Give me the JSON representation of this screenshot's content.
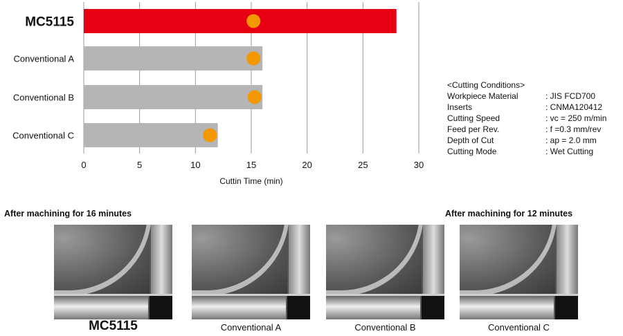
{
  "chart_data": {
    "type": "bar",
    "orientation": "horizontal",
    "categories": [
      "MC5115",
      "Conventional A",
      "Conventional B",
      "Conventional C"
    ],
    "values": [
      28,
      16,
      16,
      12
    ],
    "markers": [
      15.2,
      15.2,
      15.3,
      11.3
    ],
    "xlabel": "Cuttin Time (min)",
    "xlim": [
      0,
      30
    ],
    "xticks": [
      0,
      5,
      10,
      15,
      20,
      25,
      30
    ],
    "grid": true,
    "colors": {
      "highlight": "#e60012",
      "bar": "#b4b5b4",
      "marker": "#f39800",
      "grid": "#999999"
    }
  },
  "conditions": {
    "title": "<Cutting Conditions>",
    "rows": [
      {
        "k": "Workpiece Material",
        "v": ": JIS FCD700"
      },
      {
        "k": "Inserts",
        "v": ": CNMA120412"
      },
      {
        "k": "Cutting Speed",
        "v": ": vc = 250 m/min"
      },
      {
        "k": "Feed per Rev.",
        "v": ": f =0.3 mm/rev"
      },
      {
        "k": "Depth of Cut",
        "v": ": ap = 2.0 mm"
      },
      {
        "k": "Cutting Mode",
        "v": ": Wet Cutting"
      }
    ]
  },
  "photos": {
    "header_left": "After machining for 16 minutes",
    "header_right": "After machining for 12 minutes",
    "labels": [
      "MC5115",
      "Conventional A",
      "Conventional B",
      "Conventional C"
    ]
  }
}
